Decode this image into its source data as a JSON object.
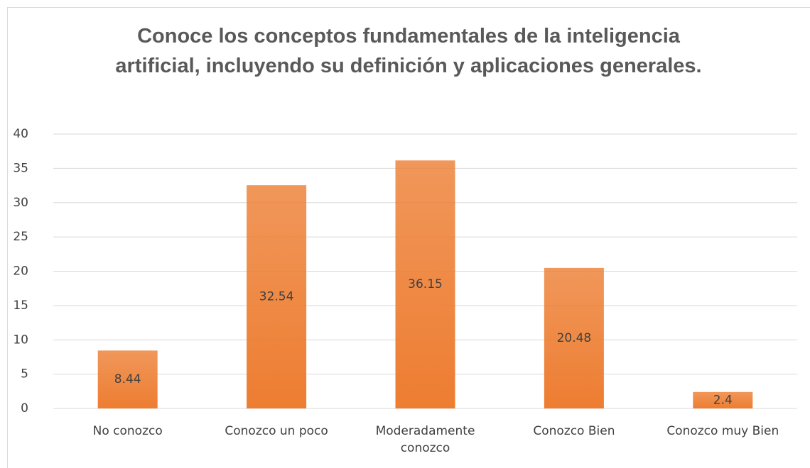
{
  "chart_data": {
    "type": "bar",
    "title": "Conoce los conceptos fundamentales de la inteligencia artificial, incluyendo su definición y aplicaciones generales.",
    "categories": [
      "No conozco",
      "Conozco un poco",
      "Moderadamente conozco",
      "Conozco Bien",
      "Conozco muy Bien"
    ],
    "values": [
      8.44,
      32.54,
      36.15,
      20.48,
      2.4
    ],
    "color": "#ed7d31",
    "ylim": [
      0,
      40
    ],
    "yticks": [
      0,
      5,
      10,
      15,
      20,
      25,
      30,
      35,
      40
    ],
    "grid": true
  }
}
